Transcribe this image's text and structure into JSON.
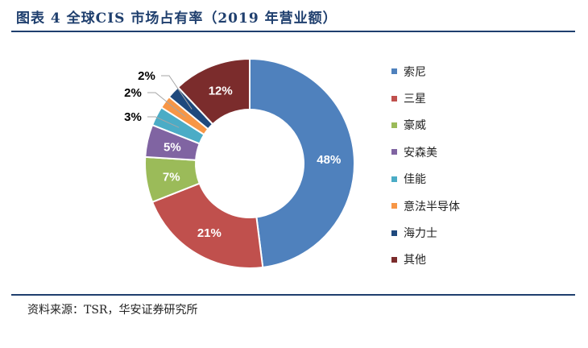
{
  "header": {
    "title": "图表 4 全球CIS 市场占有率（2019 年营业额）"
  },
  "footer": {
    "source": "资料来源：TSR，华安证券研究所"
  },
  "chart_data": {
    "type": "pie",
    "style": "donut",
    "title": "图表 4 全球CIS 市场占有率（2019 年营业额）",
    "categories": [
      "索尼",
      "三星",
      "豪威",
      "安森美",
      "佳能",
      "意法半导体",
      "海力士",
      "其他"
    ],
    "values": [
      48,
      21,
      7,
      5,
      3,
      2,
      2,
      12
    ],
    "labels": [
      "48%",
      "21%",
      "7%",
      "5%",
      "3%",
      "2%",
      "2%",
      "12%"
    ],
    "colors": [
      "#4f81bd",
      "#c0504d",
      "#9bbb59",
      "#8064a2",
      "#4bacc6",
      "#f79646",
      "#1f497d",
      "#7b2c2c"
    ],
    "legend_position": "right",
    "label_placement": [
      "inside",
      "inside",
      "inside",
      "inside",
      "outside",
      "outside",
      "outside",
      "inside"
    ]
  }
}
